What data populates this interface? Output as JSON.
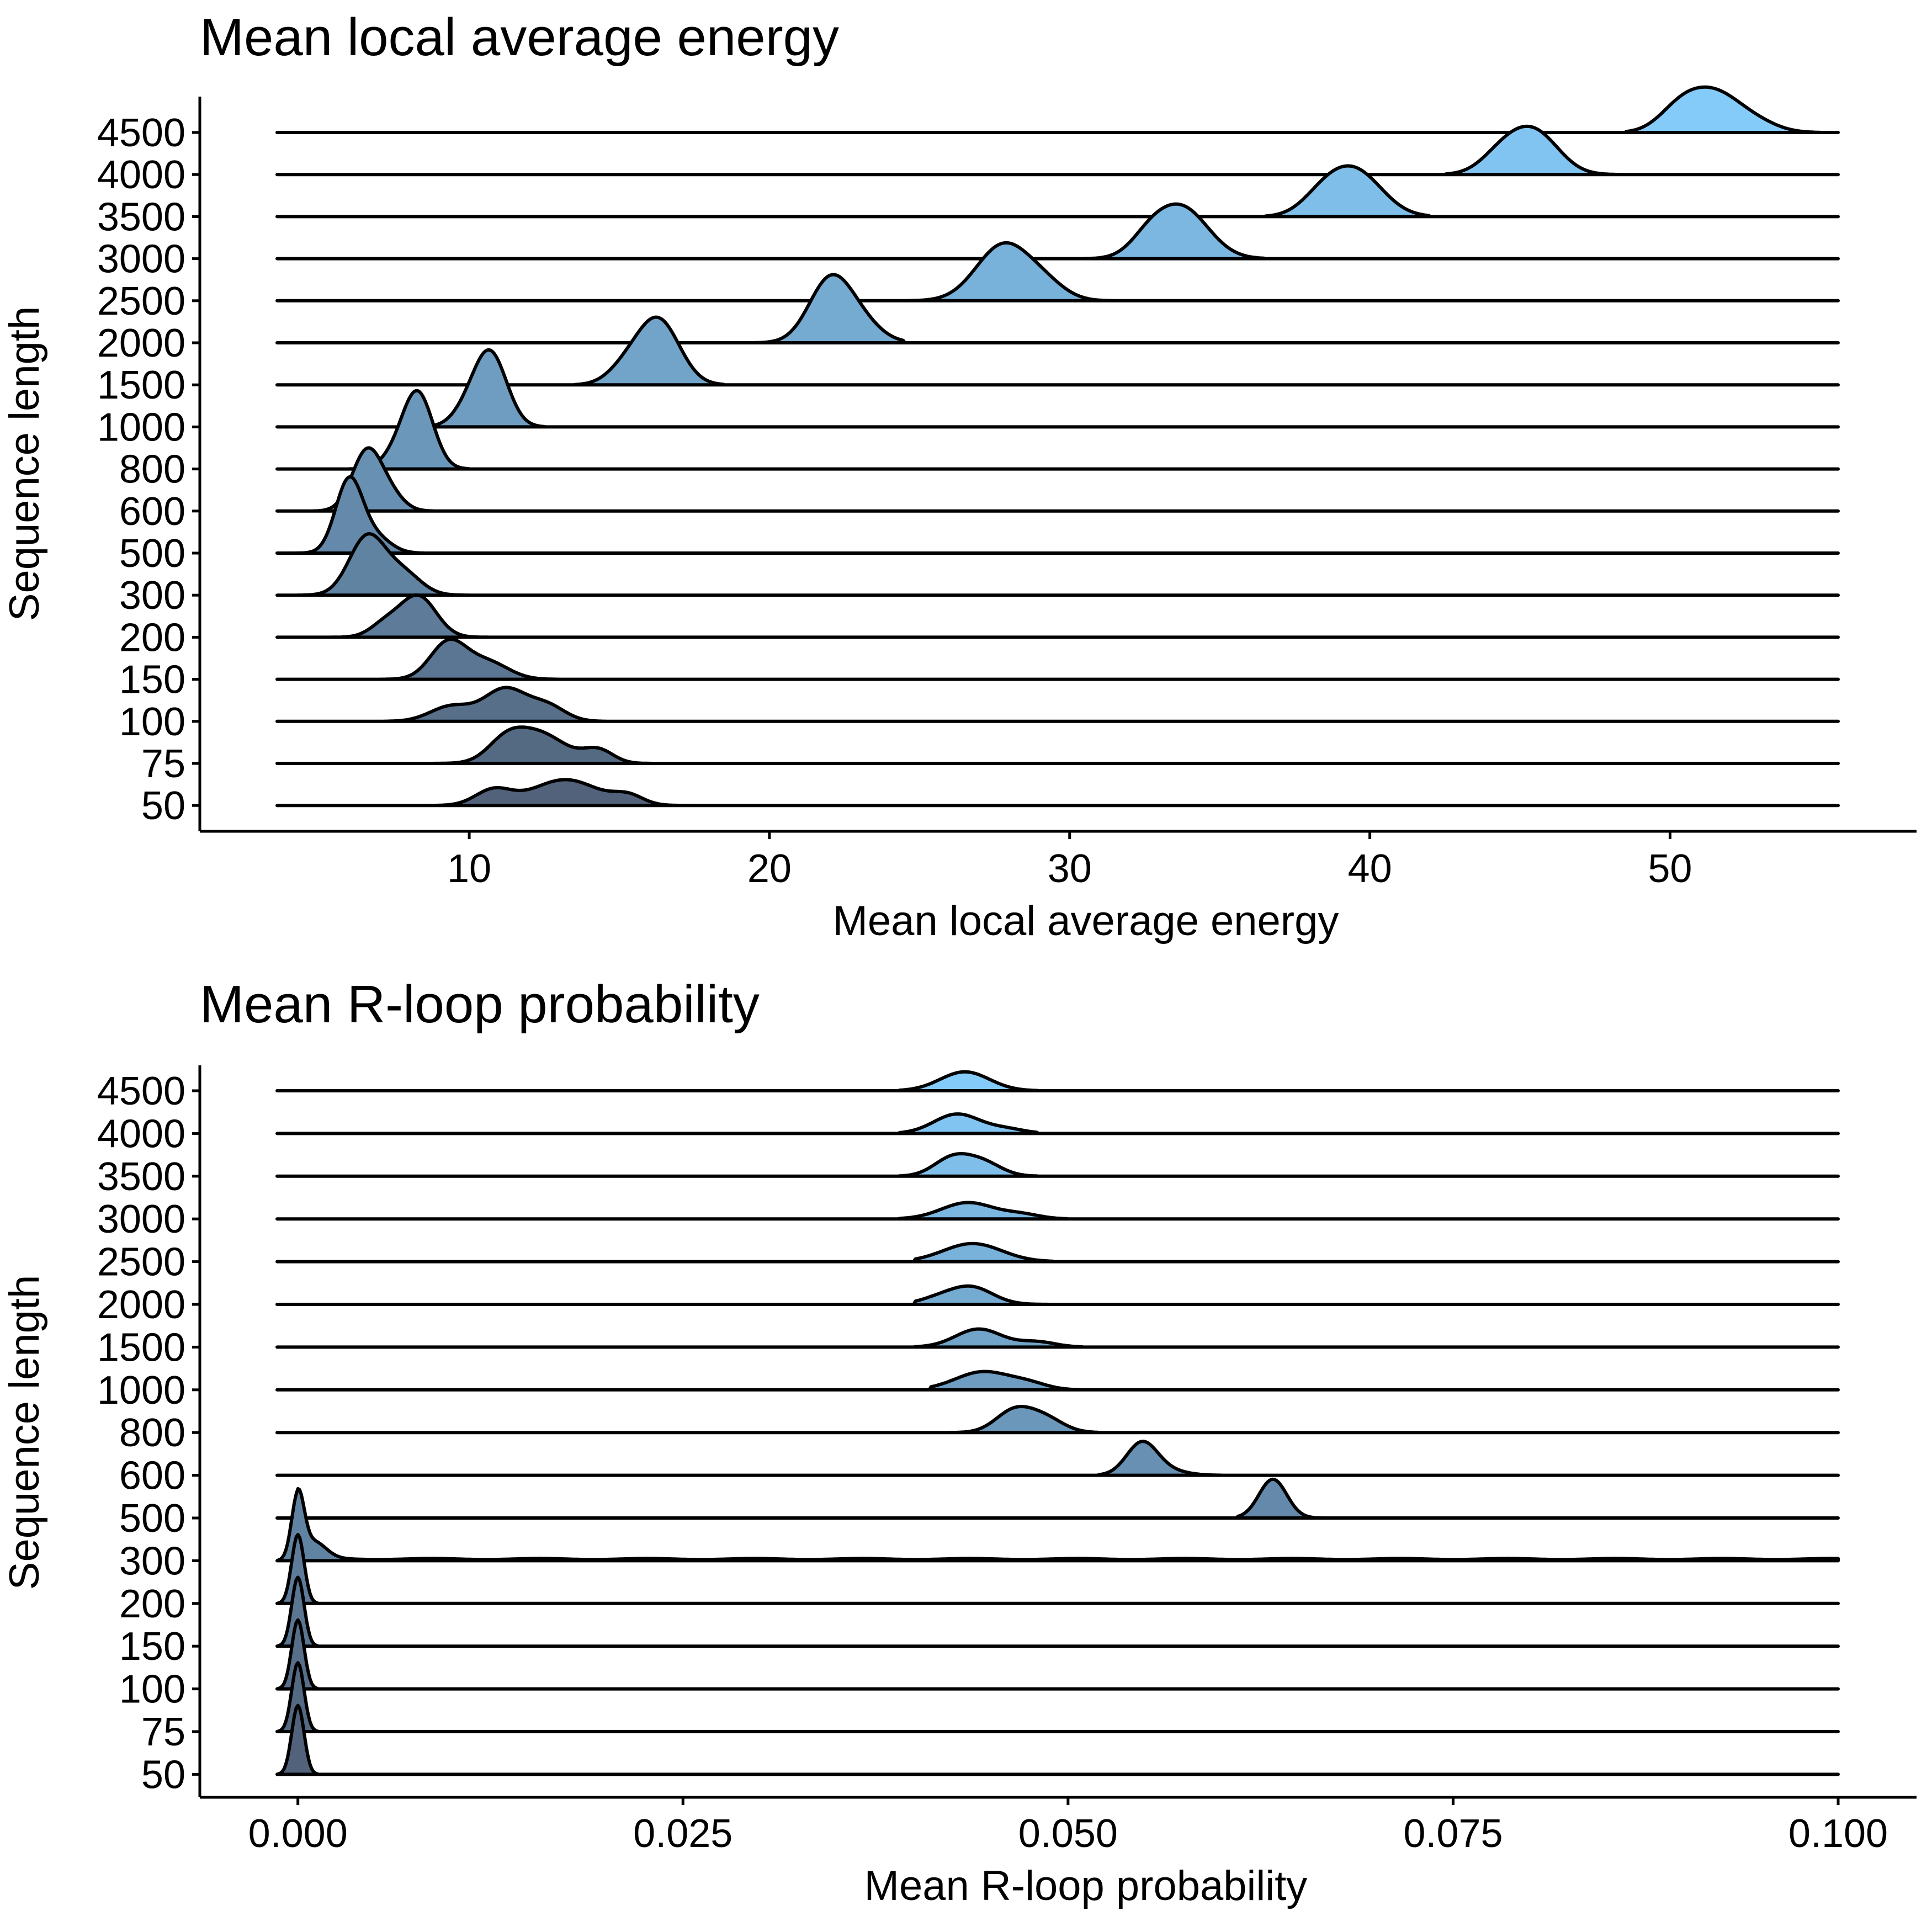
{
  "chart_data": [
    {
      "type": "ridgeline",
      "title": "Mean local average energy",
      "xlabel": "Mean local average energy",
      "ylabel": "Sequence length",
      "xlim": [
        3.6,
        55.6
      ],
      "x_ticks": [
        10,
        20,
        30,
        40,
        50
      ],
      "x_tick_labels": [
        "10",
        "20",
        "30",
        "40",
        "50"
      ],
      "fill_gradient": [
        "#51627a",
        "#85cbf9"
      ],
      "grid": false,
      "legend": "none",
      "series": [
        {
          "name": "50",
          "peaks": [
            [
              10.8,
              0.6,
              0.35
            ],
            [
              13.2,
              1.1,
              0.6
            ],
            [
              15.3,
              0.5,
              0.2
            ]
          ],
          "support": [
            8.0,
            17.5
          ]
        },
        {
          "name": "75",
          "peaks": [
            [
              11.2,
              0.6,
              0.4
            ],
            [
              12.3,
              0.9,
              0.7
            ],
            [
              14.3,
              0.5,
              0.3
            ]
          ],
          "support": [
            8.0,
            16.5
          ]
        },
        {
          "name": "100",
          "peaks": [
            [
              9.4,
              0.7,
              0.35
            ],
            [
              11.2,
              0.7,
              0.75
            ],
            [
              12.6,
              0.6,
              0.35
            ]
          ],
          "support": [
            5.5,
            15.5
          ]
        },
        {
          "name": "150",
          "peaks": [
            [
              9.3,
              0.6,
              0.85
            ],
            [
              10.6,
              0.7,
              0.4
            ]
          ],
          "support": [
            5.5,
            13.0
          ]
        },
        {
          "name": "200",
          "peaks": [
            [
              8.3,
              0.6,
              0.95
            ],
            [
              7.2,
              0.5,
              0.3
            ]
          ],
          "support": [
            4.0,
            11.0
          ]
        },
        {
          "name": "300",
          "peaks": [
            [
              6.6,
              0.6,
              1.35
            ],
            [
              7.8,
              0.6,
              0.5
            ]
          ],
          "support": [
            3.6,
            10.0
          ]
        },
        {
          "name": "500",
          "peaks": [
            [
              6.0,
              0.45,
              1.7
            ],
            [
              6.9,
              0.5,
              0.35
            ]
          ],
          "support": [
            3.6,
            8.5
          ]
        },
        {
          "name": "600",
          "peaks": [
            [
              6.6,
              0.5,
              1.4
            ],
            [
              7.4,
              0.45,
              0.3
            ]
          ],
          "support": [
            4.5,
            8.8
          ]
        },
        {
          "name": "800",
          "peaks": [
            [
              8.3,
              0.5,
              1.7
            ],
            [
              7.6,
              0.5,
              0.3
            ]
          ],
          "support": [
            6.0,
            10.0
          ]
        },
        {
          "name": "1000",
          "peaks": [
            [
              10.7,
              0.55,
              1.7
            ],
            [
              9.9,
              0.5,
              0.3
            ]
          ],
          "support": [
            8.5,
            12.5
          ]
        },
        {
          "name": "1500",
          "peaks": [
            [
              16.3,
              0.7,
              1.5
            ],
            [
              15.2,
              0.6,
              0.35
            ]
          ],
          "support": [
            13.5,
            18.5
          ]
        },
        {
          "name": "2000",
          "peaks": [
            [
              22.0,
              0.7,
              1.4
            ],
            [
              23.0,
              0.7,
              0.45
            ]
          ],
          "support": [
            19.5,
            24.5
          ]
        },
        {
          "name": "2500",
          "peaks": [
            [
              27.8,
              0.9,
              1.3
            ],
            [
              29.2,
              0.7,
              0.3
            ]
          ],
          "support": [
            24.5,
            31.5
          ]
        },
        {
          "name": "3000",
          "peaks": [
            [
              33.7,
              0.9,
              1.2
            ],
            [
              32.6,
              0.6,
              0.3
            ]
          ],
          "support": [
            30.5,
            36.5
          ]
        },
        {
          "name": "3500",
          "peaks": [
            [
              39.5,
              0.9,
              1.05
            ],
            [
              38.4,
              0.7,
              0.35
            ]
          ],
          "support": [
            36.5,
            42.0
          ]
        },
        {
          "name": "4000",
          "peaks": [
            [
              45.5,
              0.8,
              0.95
            ],
            [
              44.4,
              0.7,
              0.45
            ]
          ],
          "support": [
            42.5,
            48.5
          ]
        },
        {
          "name": "4500",
          "peaks": [
            [
              51.5,
              0.9,
              0.9
            ],
            [
              50.3,
              0.7,
              0.45
            ],
            [
              53.0,
              0.7,
              0.15
            ]
          ],
          "support": [
            48.5,
            55.0
          ]
        }
      ]
    },
    {
      "type": "ridgeline",
      "title": "Mean R-loop probability",
      "xlabel": "Mean R-loop probability",
      "ylabel": "Sequence length",
      "xlim": [
        -0.00135,
        0.1
      ],
      "x_ticks": [
        0.0,
        0.025,
        0.05,
        0.075,
        0.1
      ],
      "x_tick_labels": [
        "0.000",
        "0.025",
        "0.050",
        "0.075",
        "0.100"
      ],
      "fill_gradient": [
        "#51627a",
        "#85cbf9"
      ],
      "grid": false,
      "legend": "none",
      "series": [
        {
          "name": "50",
          "peaks": [
            [
              0.0,
              0.0004,
              1.6
            ]
          ],
          "support": [
            -0.0013,
            0.0013
          ]
        },
        {
          "name": "75",
          "peaks": [
            [
              0.0,
              0.0004,
              1.6
            ]
          ],
          "support": [
            -0.0013,
            0.0013
          ]
        },
        {
          "name": "100",
          "peaks": [
            [
              0.0,
              0.0004,
              1.6
            ]
          ],
          "support": [
            -0.0013,
            0.0013
          ]
        },
        {
          "name": "150",
          "peaks": [
            [
              0.0,
              0.0004,
              1.6
            ]
          ],
          "support": [
            -0.0013,
            0.0013
          ]
        },
        {
          "name": "200",
          "peaks": [
            [
              0.0,
              0.0004,
              1.6
            ]
          ],
          "support": [
            -0.0013,
            0.0013
          ]
        },
        {
          "name": "300",
          "peaks": [
            [
              0.0,
              0.0004,
              1.45
            ],
            [
              0.001,
              0.0008,
              0.4
            ]
          ],
          "support": [
            -0.0013,
            0.1
          ],
          "tail": 0.04
        },
        {
          "name": "500",
          "peaks": [
            [
              0.0633,
              0.0009,
              0.9
            ]
          ],
          "support": [
            0.061,
            0.068
          ]
        },
        {
          "name": "600",
          "peaks": [
            [
              0.0548,
              0.001,
              0.75
            ],
            [
              0.0565,
              0.0012,
              0.1
            ]
          ],
          "support": [
            0.052,
            0.06
          ]
        },
        {
          "name": "800",
          "peaks": [
            [
              0.0465,
              0.0012,
              0.5
            ],
            [
              0.0485,
              0.0012,
              0.32
            ]
          ],
          "support": [
            0.041,
            0.052
          ]
        },
        {
          "name": "1000",
          "peaks": [
            [
              0.0445,
              0.0018,
              0.42
            ],
            [
              0.0475,
              0.0012,
              0.12
            ]
          ],
          "support": [
            0.041,
            0.051
          ]
        },
        {
          "name": "1500",
          "peaks": [
            [
              0.0442,
              0.0015,
              0.42
            ],
            [
              0.048,
              0.0012,
              0.12
            ]
          ],
          "support": [
            0.04,
            0.051
          ]
        },
        {
          "name": "2000",
          "peaks": [
            [
              0.0437,
              0.0014,
              0.4
            ],
            [
              0.0415,
              0.0012,
              0.12
            ]
          ],
          "support": [
            0.04,
            0.049
          ]
        },
        {
          "name": "2500",
          "peaks": [
            [
              0.0438,
              0.0019,
              0.42
            ]
          ],
          "support": [
            0.04,
            0.049
          ]
        },
        {
          "name": "3000",
          "peaks": [
            [
              0.0435,
              0.0017,
              0.38
            ],
            [
              0.047,
              0.0012,
              0.1
            ]
          ],
          "support": [
            0.039,
            0.05
          ]
        },
        {
          "name": "3500",
          "peaks": [
            [
              0.0425,
              0.0012,
              0.42
            ],
            [
              0.0445,
              0.0012,
              0.3
            ]
          ],
          "support": [
            0.039,
            0.048
          ]
        },
        {
          "name": "4000",
          "peaks": [
            [
              0.0428,
              0.0015,
              0.45
            ],
            [
              0.046,
              0.0012,
              0.1
            ]
          ],
          "support": [
            0.039,
            0.048
          ]
        },
        {
          "name": "4500",
          "peaks": [
            [
              0.0433,
              0.0016,
              0.44
            ]
          ],
          "support": [
            0.039,
            0.048
          ]
        }
      ]
    }
  ]
}
